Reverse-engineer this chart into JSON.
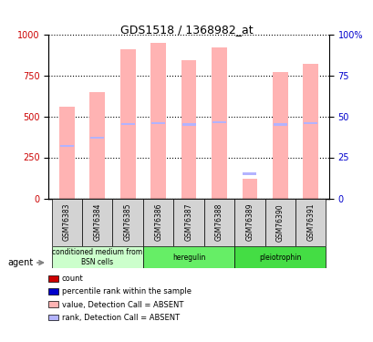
{
  "title": "GDS1518 / 1368982_at",
  "samples": [
    "GSM76383",
    "GSM76384",
    "GSM76385",
    "GSM76386",
    "GSM76387",
    "GSM76388",
    "GSM76389",
    "GSM76390",
    "GSM76391"
  ],
  "bar_values": [
    560,
    650,
    910,
    950,
    840,
    920,
    120,
    770,
    820
  ],
  "rank_values": [
    320,
    370,
    455,
    460,
    450,
    465,
    150,
    450,
    460
  ],
  "bar_color_absent": "#ffb3b3",
  "rank_color_absent": "#b3b3ff",
  "ylim": [
    0,
    1000
  ],
  "y2lim": [
    0,
    100
  ],
  "yticks": [
    0,
    250,
    500,
    750,
    1000
  ],
  "y2ticks": [
    0,
    25,
    50,
    75,
    100
  ],
  "groups": [
    {
      "label": "conditioned medium from\nBSN cells",
      "start": 0,
      "end": 3,
      "color": "#ccffcc"
    },
    {
      "label": "heregulin",
      "start": 3,
      "end": 6,
      "color": "#66ee66"
    },
    {
      "label": "pleiotrophin",
      "start": 6,
      "end": 9,
      "color": "#44dd44"
    }
  ],
  "agent_label": "agent",
  "legend_items": [
    {
      "color": "#cc0000",
      "label": "count"
    },
    {
      "color": "#0000cc",
      "label": "percentile rank within the sample"
    },
    {
      "color": "#ffb3b3",
      "label": "value, Detection Call = ABSENT"
    },
    {
      "color": "#b3b3ff",
      "label": "rank, Detection Call = ABSENT"
    }
  ],
  "left_axis_color": "#cc0000",
  "right_axis_color": "#0000cc",
  "grid_color": "#000000",
  "background_color": "#ffffff",
  "plot_bg_color": "#ffffff",
  "bar_width": 0.5
}
